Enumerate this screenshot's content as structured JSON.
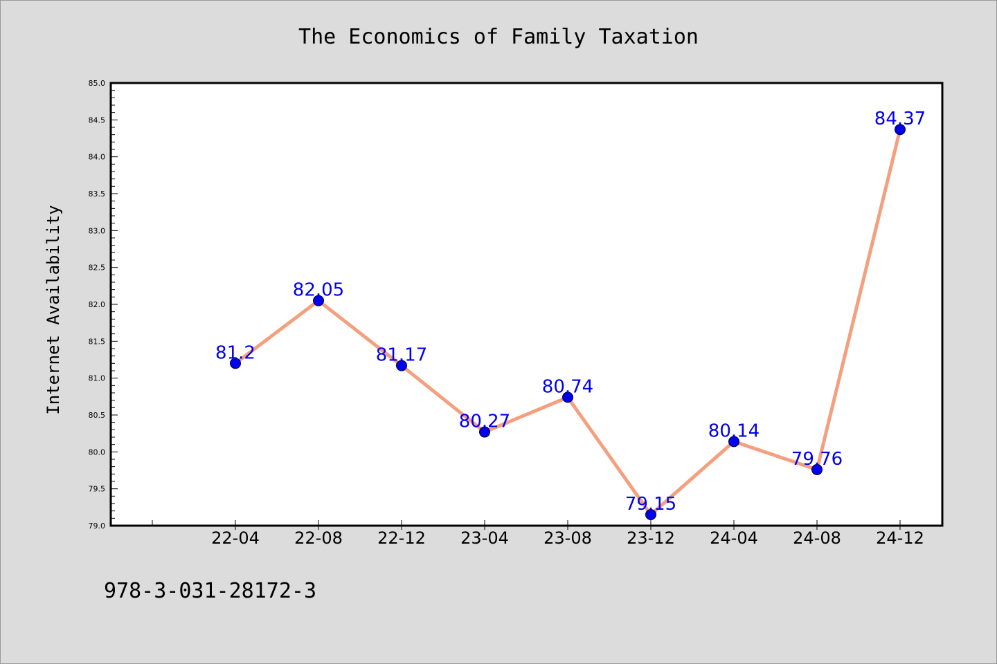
{
  "chart_data": {
    "type": "line",
    "title": "The Economics of Family Taxation",
    "ylabel": "Internet Availability",
    "xlabel": "",
    "categories": [
      "22-04",
      "22-08",
      "22-12",
      "23-04",
      "23-08",
      "23-12",
      "24-04",
      "24-08",
      "24-12"
    ],
    "values": [
      81.2,
      82.05,
      81.17,
      80.27,
      80.74,
      79.15,
      80.14,
      79.76,
      84.37
    ],
    "data_labels": [
      "81.2",
      "82.05",
      "81.17",
      "80.27",
      "80.74",
      "79.15",
      "80.14",
      "79.76",
      "84.37"
    ],
    "ylim": [
      79.0,
      85.0
    ],
    "yticks": [
      79.0,
      79.5,
      80.0,
      80.5,
      81.0,
      81.5,
      82.0,
      82.5,
      83.0,
      83.5,
      84.0,
      84.5,
      85.0
    ],
    "ytick_labels": [
      "79.0",
      "79.5",
      "80.0",
      "80.5",
      "81.0",
      "81.5",
      "82.0",
      "82.5",
      "83.0",
      "83.5",
      "84.0",
      "84.5",
      "85.0"
    ],
    "grid": false,
    "line_color": "#f4a07f",
    "marker_color": "#0000ee",
    "label_color": "#0000ee"
  },
  "footer": {
    "isbn": "978-3-031-28172-3"
  }
}
